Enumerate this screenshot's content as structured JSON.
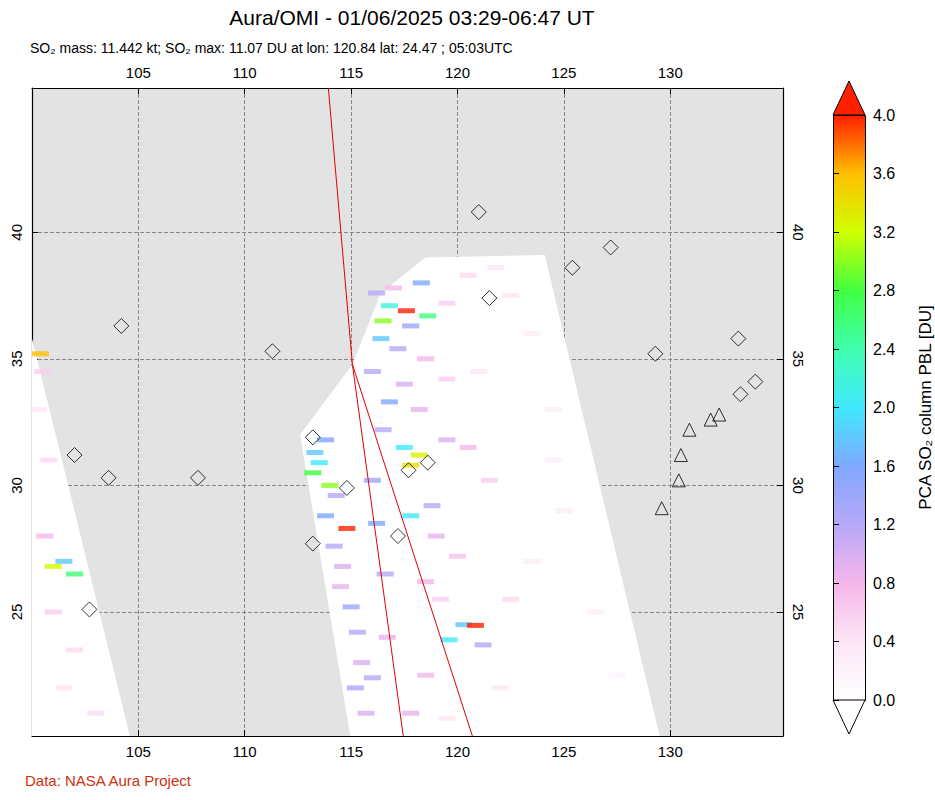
{
  "chart_data": {
    "type": "map",
    "title": "Aura/OMI - 01/06/2025 03:29-06:47 UT",
    "subtitle": "SO₂ mass: 11.442 kt; SO₂ max: 11.07 DU at lon: 120.84 lat: 24.47 ; 05:03UTC",
    "source": "Data: NASA Aura Project",
    "xlim": [
      100,
      135.3
    ],
    "ylim": [
      20.1,
      45.7
    ],
    "xticks": [
      105,
      110,
      115,
      120,
      125,
      130
    ],
    "yticks": [
      25,
      30,
      35,
      40
    ],
    "grid": true,
    "coverage": [
      [
        [
          100,
          35.8
        ],
        [
          104.6,
          20.1
        ],
        [
          100,
          20.1
        ]
      ],
      [
        [
          112.6,
          32.0
        ],
        [
          115.06,
          34.78
        ],
        [
          116.4,
          37.6
        ],
        [
          118.5,
          39.0
        ],
        [
          124.1,
          39.1
        ],
        [
          129.5,
          20.1
        ],
        [
          114.96,
          20.1
        ]
      ]
    ],
    "orbit_lines": [
      [
        [
          113.93,
          45.7
        ],
        [
          115.06,
          34.78
        ],
        [
          117.45,
          20.1
        ]
      ],
      [
        [
          115.06,
          34.78
        ],
        [
          120.7,
          20.1
        ]
      ]
    ],
    "so2": {
      "points": [
        [
          116.2,
          37.6,
          1.2
        ],
        [
          117.0,
          37.8,
          0.8
        ],
        [
          118.3,
          38.0,
          1.6
        ],
        [
          116.8,
          37.1,
          2.2
        ],
        [
          117.6,
          36.9,
          4.0
        ],
        [
          118.6,
          36.7,
          2.6
        ],
        [
          116.5,
          36.5,
          3.0
        ],
        [
          117.8,
          36.3,
          1.4
        ],
        [
          119.5,
          37.2,
          0.6
        ],
        [
          120.5,
          38.3,
          0.5
        ],
        [
          121.8,
          38.6,
          0.4
        ],
        [
          122.5,
          37.5,
          0.4
        ],
        [
          116.4,
          35.8,
          1.8
        ],
        [
          117.2,
          35.4,
          1.2
        ],
        [
          118.5,
          35.0,
          0.8
        ],
        [
          116.0,
          34.5,
          1.2
        ],
        [
          117.5,
          34.0,
          1.0
        ],
        [
          116.8,
          33.3,
          1.6
        ],
        [
          118.2,
          33.0,
          0.9
        ],
        [
          119.5,
          34.2,
          0.6
        ],
        [
          121.0,
          34.5,
          0.4
        ],
        [
          123.5,
          36.0,
          0.3
        ],
        [
          124.5,
          33.0,
          0.3
        ],
        [
          116.5,
          32.2,
          1.2
        ],
        [
          117.5,
          31.5,
          2.0
        ],
        [
          118.2,
          31.2,
          3.3
        ],
        [
          117.8,
          30.8,
          3.4
        ],
        [
          119.5,
          31.8,
          1.0
        ],
        [
          120.5,
          31.5,
          0.8
        ],
        [
          121.5,
          30.2,
          0.6
        ],
        [
          118.8,
          29.2,
          1.2
        ],
        [
          117.8,
          28.8,
          2.0
        ],
        [
          119.0,
          28.0,
          0.9
        ],
        [
          120.0,
          27.2,
          0.7
        ],
        [
          118.5,
          26.2,
          0.8
        ],
        [
          119.2,
          25.5,
          0.6
        ],
        [
          120.3,
          24.5,
          1.8
        ],
        [
          119.6,
          23.9,
          2.0
        ],
        [
          120.84,
          24.47,
          11.07
        ],
        [
          121.2,
          23.7,
          1.2
        ],
        [
          122.5,
          25.5,
          0.5
        ],
        [
          123.5,
          27.0,
          0.3
        ],
        [
          125.0,
          29.0,
          0.3
        ],
        [
          126.5,
          25.0,
          0.3
        ],
        [
          127.5,
          22.5,
          0.2
        ],
        [
          122.0,
          22.0,
          0.4
        ],
        [
          118.5,
          22.5,
          0.8
        ],
        [
          117.8,
          21.0,
          0.9
        ],
        [
          119.5,
          20.8,
          0.4
        ],
        [
          124.5,
          31.0,
          0.3
        ],
        [
          113.3,
          31.3,
          1.8
        ],
        [
          113.5,
          30.9,
          2.0
        ],
        [
          113.2,
          30.5,
          2.8
        ],
        [
          114.0,
          30.0,
          3.0
        ],
        [
          114.3,
          29.6,
          1.2
        ],
        [
          113.8,
          28.8,
          1.6
        ],
        [
          114.8,
          28.3,
          4.0
        ],
        [
          114.2,
          27.6,
          1.2
        ],
        [
          114.6,
          26.8,
          1.0
        ],
        [
          114.5,
          26.0,
          0.9
        ],
        [
          115.0,
          25.2,
          1.4
        ],
        [
          115.3,
          24.2,
          1.2
        ],
        [
          115.5,
          23.0,
          1.0
        ],
        [
          115.2,
          22.0,
          1.3
        ],
        [
          115.7,
          21.0,
          1.0
        ],
        [
          113.8,
          31.8,
          1.6
        ],
        [
          116.0,
          30.2,
          1.4
        ],
        [
          116.2,
          28.5,
          1.6
        ],
        [
          116.6,
          26.5,
          1.2
        ],
        [
          116.7,
          24.0,
          0.9
        ],
        [
          116.0,
          22.4,
          1.2
        ],
        [
          100.5,
          34.5,
          0.6
        ],
        [
          100.3,
          33.0,
          0.4
        ],
        [
          100.8,
          31.0,
          0.5
        ],
        [
          100.6,
          28.0,
          0.8
        ],
        [
          101.5,
          27.0,
          1.8
        ],
        [
          101.0,
          26.8,
          3.2
        ],
        [
          102.0,
          26.5,
          2.6
        ],
        [
          101.0,
          25.0,
          0.6
        ],
        [
          102.0,
          23.5,
          0.5
        ],
        [
          101.5,
          22.0,
          0.4
        ],
        [
          103.0,
          21.0,
          0.5
        ],
        [
          100.4,
          35.2,
          3.6
        ]
      ]
    },
    "volcanoes": {
      "diamond": [
        [
          104.2,
          36.3
        ],
        [
          111.3,
          35.3
        ],
        [
          102.0,
          31.2
        ],
        [
          103.6,
          30.3
        ],
        [
          107.8,
          30.3
        ],
        [
          102.7,
          25.1
        ],
        [
          113.2,
          31.9
        ],
        [
          114.8,
          29.9
        ],
        [
          113.2,
          27.7
        ],
        [
          117.2,
          28.0
        ],
        [
          117.7,
          30.6
        ],
        [
          118.6,
          30.9
        ],
        [
          121.0,
          40.8
        ],
        [
          121.5,
          37.4
        ],
        [
          125.4,
          38.6
        ],
        [
          127.2,
          39.4
        ],
        [
          129.3,
          35.2
        ],
        [
          133.2,
          35.8
        ],
        [
          134.0,
          34.1
        ],
        [
          133.3,
          33.6
        ]
      ],
      "triangle": [
        [
          130.9,
          32.2
        ],
        [
          130.5,
          31.2
        ],
        [
          130.4,
          30.2
        ],
        [
          129.6,
          29.1
        ],
        [
          131.9,
          32.6
        ],
        [
          132.3,
          32.8
        ]
      ]
    },
    "colorbar": {
      "label": "PCA SO₂ column PBL [DU]",
      "range": [
        0,
        4
      ],
      "ticks": [
        {
          "value": 0,
          "label": "0.0"
        },
        0.4,
        0.8,
        1.2,
        1.6,
        {
          "value": 2,
          "label": "2.0"
        },
        2.4,
        2.8,
        3.2,
        3.6,
        {
          "value": 4,
          "label": "4.0"
        }
      ]
    }
  }
}
